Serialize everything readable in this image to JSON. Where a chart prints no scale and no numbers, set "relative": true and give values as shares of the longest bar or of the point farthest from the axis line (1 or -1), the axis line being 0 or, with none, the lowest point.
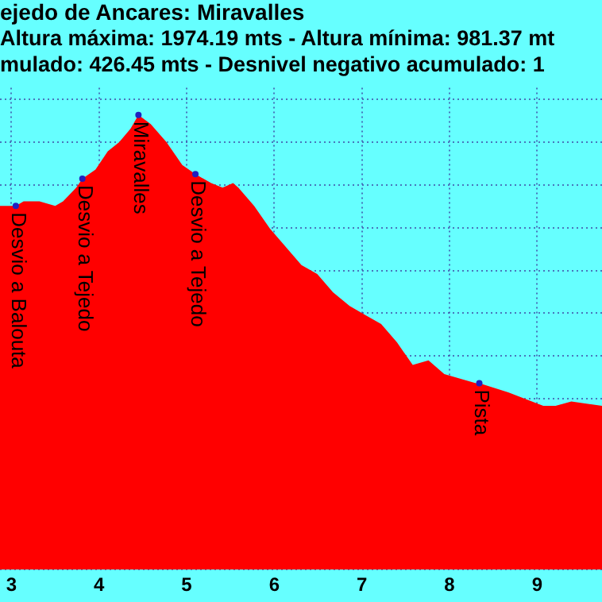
{
  "chart_data": {
    "type": "area",
    "title": "ejedo de Ancares: Miravalles",
    "subtitle": "Altura máxima: 1974.19 mts - Altura mínima: 981.37 mt\nmulado: 426.45 mts - Desnivel negativo acumulado: 1",
    "relative": true,
    "x": [
      2.87,
      3.05,
      3.14,
      3.32,
      3.5,
      3.59,
      3.74,
      3.81,
      3.96,
      4.1,
      4.23,
      4.36,
      4.45,
      4.59,
      4.77,
      4.95,
      5.1,
      5.28,
      5.41,
      5.53,
      5.59,
      5.77,
      5.95,
      6.13,
      6.31,
      6.49,
      6.67,
      6.86,
      7.04,
      7.22,
      7.4,
      7.58,
      7.76,
      7.94,
      8.3,
      8.34,
      8.67,
      8.94,
      9.07,
      9.21,
      9.39,
      9.74
    ],
    "series": [
      {
        "color": "#ff0000",
        "values": [
          0.8,
          0.8,
          0.81,
          0.81,
          0.8,
          0.81,
          0.84,
          0.86,
          0.88,
          0.92,
          0.94,
          0.97,
          1,
          0.98,
          0.94,
          0.89,
          0.87,
          0.85,
          0.84,
          0.85,
          0.84,
          0.8,
          0.75,
          0.71,
          0.67,
          0.65,
          0.61,
          0.58,
          0.56,
          0.54,
          0.5,
          0.45,
          0.46,
          0.43,
          0.41,
          0.41,
          0.39,
          0.37,
          0.36,
          0.36,
          0.37,
          0.36
        ]
      }
    ],
    "xlim": [
      2.87,
      9.74
    ],
    "xticks": [
      3,
      4,
      5,
      6,
      7,
      8,
      9
    ],
    "grid": true,
    "legend": false,
    "annotations": [
      {
        "text": "Desvio a Balouta",
        "x": 3.05,
        "y": 0.8
      },
      {
        "text": "Desvio a Tejedo",
        "x": 3.81,
        "y": 0.86
      },
      {
        "text": "Miravalles",
        "x": 4.45,
        "y": 1
      },
      {
        "text": "Desvio a Tejedo",
        "x": 5.1,
        "y": 0.87
      },
      {
        "text": "Pista",
        "x": 8.34,
        "y": 0.41
      }
    ]
  }
}
